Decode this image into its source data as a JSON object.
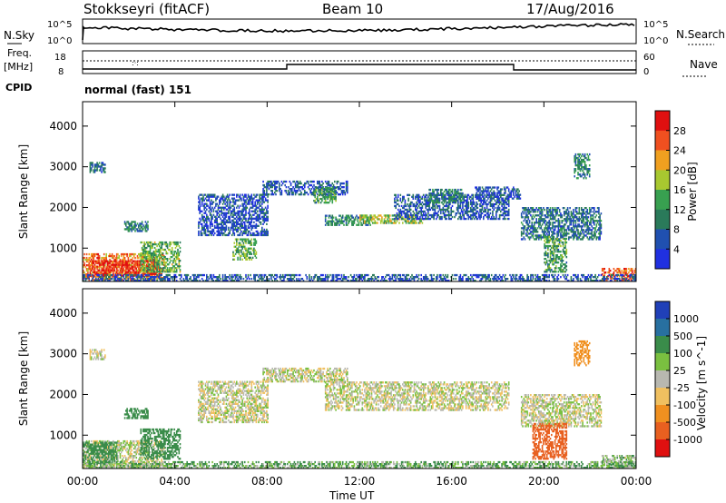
{
  "header": {
    "station": "Stokkseyri (fitACF)",
    "beam": "Beam 10",
    "date": "17/Aug/2016"
  },
  "noise_panel": {
    "left_label": "N.Sky",
    "right_label": "N.Search",
    "ticks_left": [
      "10^5",
      "10^0"
    ],
    "ticks_right": [
      "10^5",
      "10^0"
    ]
  },
  "freq_panel": {
    "left_label_1": "Freq.",
    "left_label_2": "[MHz]",
    "cpid_label": "CPID",
    "right_label": "Nave",
    "ticks_left": [
      "18",
      "8"
    ],
    "ticks_right": [
      "60",
      "0"
    ],
    "cpid_value": "normal (fast) 151"
  },
  "x_axis": {
    "ticks": [
      "00:00",
      "04:00",
      "08:00",
      "12:00",
      "16:00",
      "20:00",
      "00:00"
    ],
    "label": "Time UT"
  },
  "colors": {
    "power": [
      "#2030e0",
      "#2050b0",
      "#2a7a5a",
      "#38a050",
      "#a8c830",
      "#f0a020",
      "#f05020",
      "#e01010"
    ],
    "velocity": [
      "#2040b8",
      "#2870a0",
      "#3a8c4a",
      "#7ac040",
      "#b8b8b0",
      "#f0c060",
      "#f09020",
      "#e86020",
      "#e01010"
    ]
  },
  "chart_data": [
    {
      "type": "heatmap",
      "name": "power",
      "ylabel": "Slant Range [km]",
      "ylim": [
        180,
        4600
      ],
      "yticks": [
        1000,
        2000,
        3000,
        4000
      ],
      "xlim_hours": [
        0,
        24
      ],
      "colorbar": {
        "label": "Power [dB]",
        "ticks": [
          "4",
          "8",
          "12",
          "16",
          "20",
          "24",
          "28"
        ],
        "range": [
          0,
          30
        ]
      },
      "regions": [
        {
          "t0": 0.0,
          "t1": 3.5,
          "r0": 200,
          "r1": 850,
          "value": 22
        },
        {
          "t0": 0.3,
          "t1": 3.3,
          "r0": 300,
          "r1": 700,
          "value": 27
        },
        {
          "t0": 2.5,
          "t1": 4.2,
          "r0": 400,
          "r1": 1150,
          "value": 14
        },
        {
          "t0": 0.3,
          "t1": 1.0,
          "r0": 2850,
          "r1": 3100,
          "value": 8
        },
        {
          "t0": 1.8,
          "t1": 2.8,
          "r0": 1400,
          "r1": 1650,
          "value": 10
        },
        {
          "t0": 5.0,
          "t1": 8.0,
          "r0": 1300,
          "r1": 2300,
          "value": 5
        },
        {
          "t0": 6.5,
          "t1": 7.5,
          "r0": 700,
          "r1": 1200,
          "value": 14
        },
        {
          "t0": 7.8,
          "t1": 11.5,
          "r0": 2300,
          "r1": 2650,
          "value": 6
        },
        {
          "t0": 10.0,
          "t1": 11.0,
          "r0": 2100,
          "r1": 2500,
          "value": 12
        },
        {
          "t0": 10.5,
          "t1": 12.5,
          "r0": 1550,
          "r1": 1800,
          "value": 10
        },
        {
          "t0": 12.0,
          "t1": 14.8,
          "r0": 1600,
          "r1": 1800,
          "value": 16
        },
        {
          "t0": 13.5,
          "t1": 18.5,
          "r0": 1700,
          "r1": 2300,
          "value": 6
        },
        {
          "t0": 15.0,
          "t1": 16.5,
          "r0": 2100,
          "r1": 2450,
          "value": 10
        },
        {
          "t0": 17.0,
          "t1": 19.0,
          "r0": 2200,
          "r1": 2500,
          "value": 5
        },
        {
          "t0": 19.0,
          "t1": 22.5,
          "r0": 1200,
          "r1": 2000,
          "value": 8
        },
        {
          "t0": 20.0,
          "t1": 21.0,
          "r0": 400,
          "r1": 1300,
          "value": 12
        },
        {
          "t0": 21.3,
          "t1": 22.0,
          "r0": 2700,
          "r1": 3300,
          "value": 10
        },
        {
          "t0": 22.5,
          "t1": 24.0,
          "r0": 200,
          "r1": 500,
          "value": 24
        },
        {
          "t0": 0.0,
          "t1": 24.0,
          "r0": 180,
          "r1": 320,
          "value": 6
        }
      ]
    },
    {
      "type": "heatmap",
      "name": "velocity",
      "ylabel": "Slant Range [km]",
      "ylim": [
        180,
        4600
      ],
      "yticks": [
        1000,
        2000,
        3000,
        4000
      ],
      "xlim_hours": [
        0,
        24
      ],
      "colorbar": {
        "label": "Velocity [m s^-1]",
        "ticks": [
          "1000",
          "500",
          "100",
          "25",
          "-25",
          "-100",
          "-500",
          "-1000"
        ]
      },
      "regions": [
        {
          "t0": 0.0,
          "t1": 3.5,
          "r0": 200,
          "r1": 850,
          "value": 0
        },
        {
          "t0": 0.0,
          "t1": 1.5,
          "r0": 300,
          "r1": 800,
          "value": 120
        },
        {
          "t0": 2.5,
          "t1": 4.2,
          "r0": 400,
          "r1": 1150,
          "value": 200
        },
        {
          "t0": 0.3,
          "t1": 1.0,
          "r0": 2850,
          "r1": 3100,
          "value": 0
        },
        {
          "t0": 1.8,
          "t1": 2.8,
          "r0": 1400,
          "r1": 1650,
          "value": 150
        },
        {
          "t0": 5.0,
          "t1": 8.0,
          "r0": 1300,
          "r1": 2300,
          "value": 0
        },
        {
          "t0": 7.8,
          "t1": 11.5,
          "r0": 2300,
          "r1": 2650,
          "value": 0
        },
        {
          "t0": 10.5,
          "t1": 18.5,
          "r0": 1600,
          "r1": 2300,
          "value": 0
        },
        {
          "t0": 19.0,
          "t1": 22.5,
          "r0": 1200,
          "r1": 2000,
          "value": 0
        },
        {
          "t0": 19.5,
          "t1": 21.0,
          "r0": 400,
          "r1": 1300,
          "value": -400
        },
        {
          "t0": 21.3,
          "t1": 22.0,
          "r0": 2700,
          "r1": 3300,
          "value": -150
        },
        {
          "t0": 22.5,
          "t1": 24.0,
          "r0": 200,
          "r1": 500,
          "value": 30
        },
        {
          "t0": 0.0,
          "t1": 24.0,
          "r0": 180,
          "r1": 320,
          "value": 60
        }
      ]
    }
  ]
}
